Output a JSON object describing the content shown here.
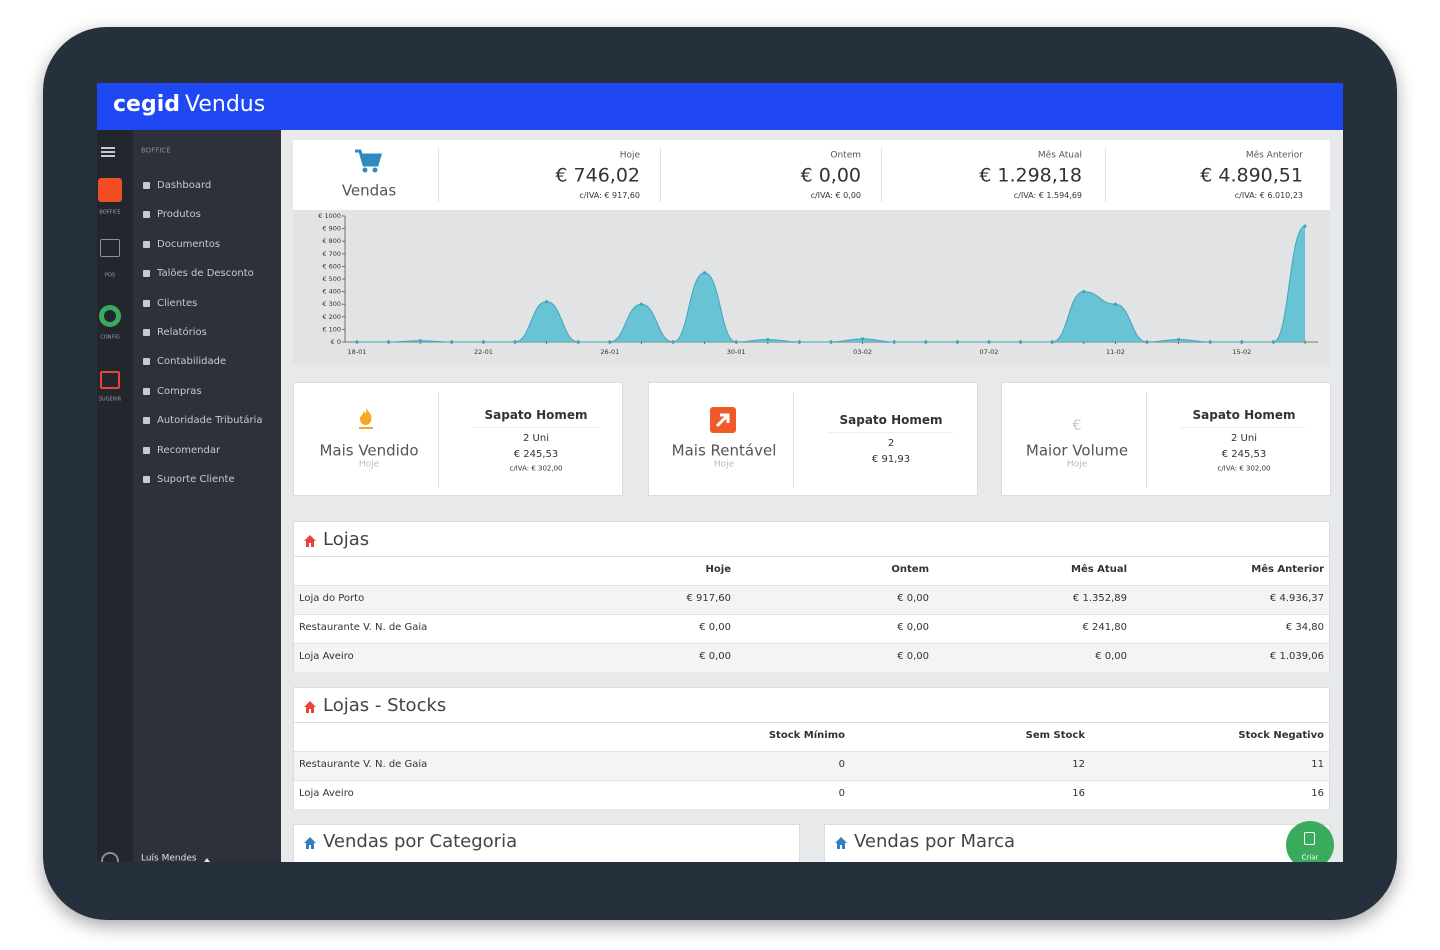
{
  "header": {
    "brand": "cegid",
    "product": "Vendus"
  },
  "sidebar": {
    "apps": [
      "BOFFICE",
      "POS",
      "CONFIG",
      "SUGERIR"
    ],
    "section": "BOFFICE",
    "menu": [
      "Dashboard",
      "Produtos",
      "Documentos",
      "Talões de Desconto",
      "Clientes",
      "Relatórios",
      "Contabilidade",
      "Compras",
      "Autoridade Tributária",
      "Recomendar",
      "Suporte Cliente"
    ],
    "user": "Luís Mendes"
  },
  "kpis": {
    "title": "Vendas",
    "columns": [
      {
        "label": "Hoje",
        "value": "€ 746,02",
        "vat": "c/IVA: € 917,60"
      },
      {
        "label": "Ontem",
        "value": "€ 0,00",
        "vat": "c/IVA: € 0,00"
      },
      {
        "label": "Mês Atual",
        "value": "€ 1.298,18",
        "vat": "c/IVA: € 1.594,69"
      },
      {
        "label": "Mês Anterior",
        "value": "€ 4.890,51",
        "vat": "c/IVA: € 6.010,23"
      }
    ]
  },
  "chart_data": {
    "type": "area",
    "categories": [
      "18-01",
      null,
      null,
      null,
      "22-01",
      null,
      null,
      null,
      "26-01",
      null,
      null,
      null,
      "30-01",
      null,
      null,
      null,
      "03-02",
      null,
      null,
      null,
      "07-02",
      null,
      null,
      null,
      "11-02",
      null,
      null,
      null,
      "15-02",
      null,
      null
    ],
    "values": [
      0,
      0,
      10,
      0,
      0,
      0,
      320,
      0,
      0,
      300,
      0,
      550,
      0,
      20,
      0,
      0,
      25,
      0,
      0,
      0,
      0,
      0,
      0,
      400,
      300,
      0,
      20,
      0,
      0,
      0,
      920
    ],
    "color": "#5bbfd3",
    "ylim": [
      0,
      1000
    ],
    "yticks": [
      {
        "value": 0,
        "label": "€ 0"
      },
      {
        "value": 100,
        "label": "€ 100"
      },
      {
        "value": 200,
        "label": "€ 200"
      },
      {
        "value": 300,
        "label": "€ 300"
      },
      {
        "value": 400,
        "label": "€ 400"
      },
      {
        "value": 500,
        "label": "€ 500"
      },
      {
        "value": 600,
        "label": "€ 600"
      },
      {
        "value": 700,
        "label": "€ 700"
      },
      {
        "value": 800,
        "label": "€ 800"
      },
      {
        "value": 900,
        "label": "€ 900"
      },
      {
        "value": 1000,
        "label": "€ 1000"
      }
    ]
  },
  "highlights": [
    {
      "title": "Mais Vendido",
      "period": "Hoje",
      "product": "Sapato Homem",
      "qty": "2 Uni",
      "value": "€ 245,53",
      "vat": "c/IVA: € 302,00"
    },
    {
      "title": "Mais Rentável",
      "period": "Hoje",
      "product": "Sapato Homem",
      "qty": "2",
      "value": "€ 91,93"
    },
    {
      "title": "Maior Volume",
      "icon": "€",
      "period": "Hoje",
      "product": "Sapato Homem",
      "qty": "2 Uni",
      "value": "€ 245,53",
      "vat": "c/IVA: € 302,00"
    }
  ],
  "stores": {
    "title": "Lojas",
    "header": [
      "Hoje",
      "Ontem",
      "Mês Atual",
      "Mês Anterior"
    ],
    "rows": [
      [
        "Loja do Porto",
        "€ 917,60",
        "€ 0,00",
        "€ 1.352,89",
        "€ 4.936,37"
      ],
      [
        "Restaurante V. N. de Gaia",
        "€ 0,00",
        "€ 0,00",
        "€ 241,80",
        "€ 34,80"
      ],
      [
        "Loja Aveiro",
        "€ 0,00",
        "€ 0,00",
        "€ 0,00",
        "€ 1.039,06"
      ]
    ]
  },
  "stocks": {
    "title": "Lojas - Stocks",
    "header": [
      "Stock Mínimo",
      "Sem Stock",
      "Stock Negativo"
    ],
    "rows": [
      [
        "Restaurante V. N. de Gaia",
        0,
        12,
        11
      ],
      [
        "Loja Aveiro",
        0,
        16,
        16
      ]
    ]
  },
  "panels": [
    "Vendas por Categoria",
    "Vendas por Marca"
  ],
  "fab": "Criar"
}
